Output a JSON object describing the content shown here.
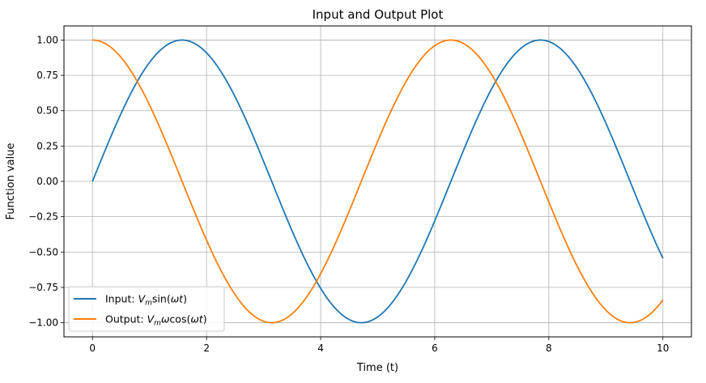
{
  "chart_data": {
    "type": "line",
    "title": "Input and Output Plot",
    "xlabel": "Time (t)",
    "ylabel": "Function value",
    "xlim": [
      -0.5,
      10.5
    ],
    "ylim": [
      -1.1,
      1.1
    ],
    "xticks": [
      0,
      2,
      4,
      6,
      8,
      10
    ],
    "yticks": [
      -1.0,
      -0.75,
      -0.5,
      -0.25,
      0.0,
      0.25,
      0.5,
      0.75,
      1.0
    ],
    "ytick_labels": [
      "−1.00",
      "−0.75",
      "−0.50",
      "−0.25",
      "0.00",
      "0.25",
      "0.50",
      "0.75",
      "1.00"
    ],
    "grid": true,
    "legend_position": "lower-left",
    "x_range": [
      0,
      10
    ],
    "series": [
      {
        "name": "Input: V_m sin(ωt)",
        "legend_prefix": "Input: ",
        "color": "#1f77b4",
        "function": "sin",
        "amplitude": 1,
        "omega": 1
      },
      {
        "name": "Output: V_m ω cos(ωt)",
        "legend_prefix": "Output: ",
        "color": "#ff7f0e",
        "function": "cos",
        "amplitude": 1,
        "omega": 1
      }
    ]
  }
}
